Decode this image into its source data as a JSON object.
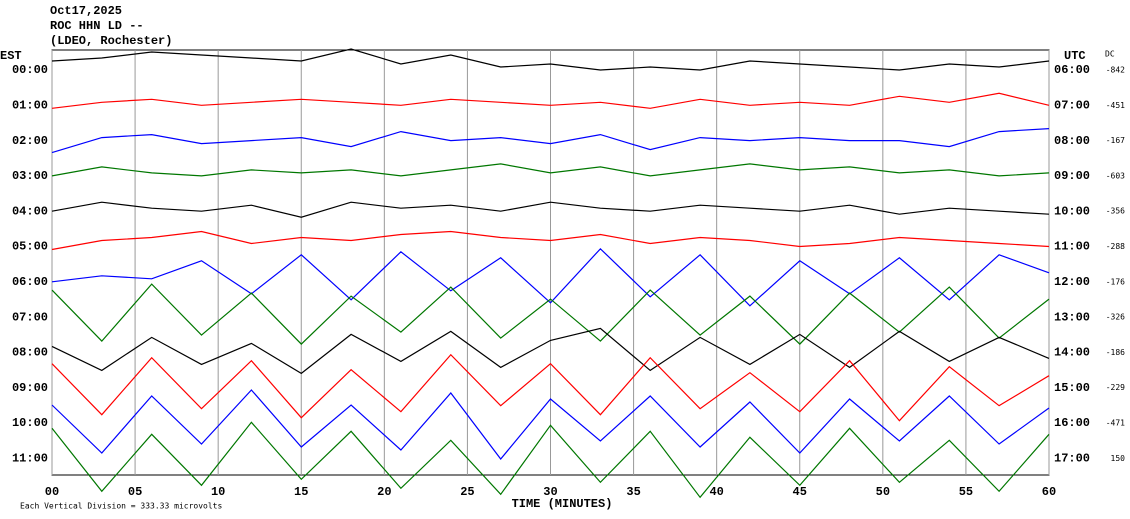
{
  "chart_data": {
    "type": "helicorder",
    "title_lines": [
      "Oct17,2025",
      "ROC HHN LD --",
      "(LDEO, Rochester)"
    ],
    "left_axis_label": "EST",
    "right_axis_label": "UTC",
    "dc_label": "DC",
    "x_label": "TIME (MINUTES)",
    "scale_note": "Each Vertical Division =  333.33 microvolts",
    "categories": [
      "00:00",
      "01:00",
      "02:00",
      "03:00",
      "04:00",
      "05:00",
      "06:00",
      "07:00",
      "08:00",
      "09:00",
      "10:00",
      "11:00"
    ],
    "right_categories": [
      "06:00",
      "07:00",
      "08:00",
      "09:00",
      "10:00",
      "11:00",
      "12:00",
      "13:00",
      "14:00",
      "15:00",
      "16:00",
      "17:00"
    ],
    "dc_values": [
      -842,
      -451,
      -167,
      -603,
      -356,
      -288,
      -176,
      -326,
      -186,
      -229,
      -471,
      150
    ],
    "xlim": [
      0,
      60
    ],
    "xticks": [
      {
        "value": 0,
        "label": "00"
      },
      {
        "value": 5,
        "label": "05"
      },
      10,
      15,
      20,
      25,
      30,
      35,
      40,
      45,
      50,
      55,
      60
    ],
    "grid": true,
    "x": [
      0,
      3,
      6,
      9,
      12,
      15,
      18,
      21,
      24,
      27,
      30,
      33,
      36,
      39,
      42,
      45,
      48,
      51,
      54,
      57,
      60
    ],
    "traces": [
      {
        "color": "#000000",
        "values": [
          0.3,
          0.4,
          0.6,
          0.5,
          0.4,
          0.3,
          0.7,
          0.2,
          0.5,
          0.1,
          0.2,
          0.0,
          0.1,
          0.0,
          0.3,
          0.2,
          0.1,
          0.0,
          0.2,
          0.1,
          0.3
        ]
      },
      {
        "color": "#ff0000",
        "values": [
          -0.1,
          0.1,
          0.2,
          0.0,
          0.1,
          0.2,
          0.1,
          0.0,
          0.2,
          0.1,
          0.0,
          0.1,
          -0.1,
          0.2,
          0.0,
          0.1,
          0.0,
          0.3,
          0.1,
          0.4,
          0.0
        ]
      },
      {
        "color": "#0000ff",
        "values": [
          -0.4,
          0.1,
          0.2,
          -0.1,
          0.0,
          0.1,
          -0.2,
          0.3,
          0.0,
          0.1,
          -0.1,
          0.2,
          -0.3,
          0.1,
          0.0,
          0.1,
          0.0,
          0.0,
          -0.2,
          0.3,
          0.4
        ]
      },
      {
        "color": "#007700",
        "values": [
          0.0,
          0.3,
          0.1,
          0.0,
          0.2,
          0.1,
          0.2,
          0.0,
          0.2,
          0.4,
          0.1,
          0.3,
          0.0,
          0.2,
          0.4,
          0.2,
          0.3,
          0.1,
          0.2,
          0.0,
          0.1
        ]
      },
      {
        "color": "#000000",
        "values": [
          0.0,
          0.3,
          0.1,
          0.0,
          0.2,
          -0.2,
          0.3,
          0.1,
          0.2,
          0.0,
          0.3,
          0.1,
          0.0,
          0.2,
          0.1,
          0.0,
          0.2,
          -0.1,
          0.1,
          0.0,
          -0.1
        ]
      },
      {
        "color": "#ff0000",
        "values": [
          -0.1,
          0.2,
          0.3,
          0.5,
          0.1,
          0.3,
          0.2,
          0.4,
          0.5,
          0.3,
          0.2,
          0.4,
          0.1,
          0.3,
          0.2,
          0.0,
          0.1,
          0.3,
          0.2,
          0.1,
          0.0
        ]
      },
      {
        "color": "#0000ff",
        "values": [
          0.0,
          0.2,
          0.1,
          0.7,
          -0.4,
          0.9,
          -0.6,
          1.0,
          -0.3,
          0.8,
          -0.7,
          1.1,
          -0.5,
          0.9,
          -0.8,
          0.7,
          -0.4,
          0.8,
          -0.6,
          0.9,
          0.3
        ]
      },
      {
        "color": "#007700",
        "values": [
          0.9,
          -0.8,
          1.1,
          -0.6,
          0.8,
          -0.9,
          0.7,
          -0.5,
          1.0,
          -0.7,
          0.6,
          -0.8,
          0.9,
          -0.6,
          0.7,
          -0.9,
          0.8,
          -0.5,
          1.0,
          -0.7,
          0.6
        ]
      },
      {
        "color": "#000000",
        "values": [
          0.2,
          -0.6,
          0.5,
          -0.4,
          0.3,
          -0.7,
          0.6,
          -0.3,
          0.7,
          -0.5,
          0.4,
          0.8,
          -0.6,
          0.5,
          -0.4,
          0.6,
          -0.5,
          0.7,
          -0.3,
          0.5,
          -0.2
        ]
      },
      {
        "color": "#ff0000",
        "values": [
          0.8,
          -0.9,
          1.0,
          -0.7,
          0.9,
          -1.0,
          0.6,
          -0.8,
          1.1,
          -0.6,
          0.8,
          -0.9,
          1.0,
          -0.7,
          0.5,
          -0.8,
          0.9,
          -1.1,
          0.7,
          -0.6,
          0.4
        ]
      },
      {
        "color": "#0000ff",
        "values": [
          0.6,
          -1.0,
          0.9,
          -0.7,
          1.1,
          -0.8,
          0.6,
          -0.9,
          1.0,
          -1.2,
          0.8,
          -0.6,
          0.9,
          -0.8,
          0.7,
          -1.0,
          0.8,
          -0.6,
          0.9,
          -0.7,
          0.5
        ]
      },
      {
        "color": "#007700",
        "values": [
          1.0,
          -1.1,
          0.8,
          -0.9,
          1.2,
          -0.7,
          0.9,
          -1.0,
          0.6,
          -1.2,
          1.1,
          -0.8,
          0.9,
          -1.3,
          0.7,
          -0.9,
          1.0,
          -0.8,
          0.6,
          -1.1,
          0.8
        ]
      }
    ]
  }
}
